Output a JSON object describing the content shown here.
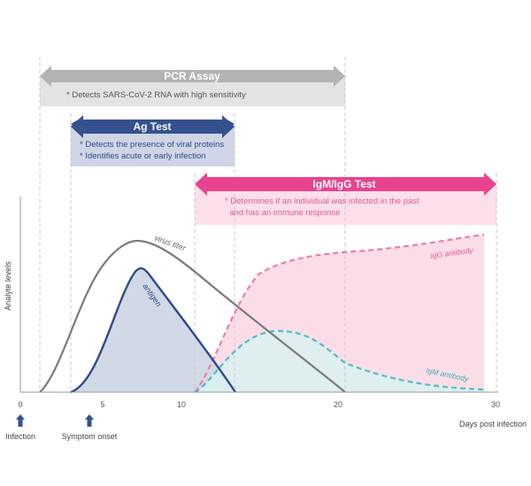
{
  "assays": {
    "pcr": {
      "title": "PCR Assay",
      "notes": [
        "* Detects SARS-CoV-2 RNA with high sensitivity"
      ],
      "color": "#b3b3b3",
      "panel_color": "#e3e3e3"
    },
    "ag": {
      "title": "Ag Test",
      "notes": [
        "* Detects the presence of viral proteins",
        "* Identifies acute or early infection"
      ],
      "color": "#35508f",
      "panel_color": "#cfd5e6"
    },
    "igm_igg": {
      "title": "IgM/IgG Test",
      "notes": [
        "* Determines if an individual was infected in the past",
        "  and has an immune response"
      ],
      "color": "#e8438e",
      "panel_color": "#fcdfeb"
    }
  },
  "axes": {
    "y_label": "Analyte levels",
    "x_label": "Days post infection",
    "ticks": [
      "0",
      "5",
      "10",
      "20",
      "30"
    ]
  },
  "markers": {
    "infection": "Infection",
    "symptom_onset": "Symptom onset"
  },
  "curves": {
    "virus_titer": {
      "label": "virus titer",
      "color": "#7a7a7a"
    },
    "antigen": {
      "label": "antigen",
      "color": "#2d4c8a",
      "fill": "#d2d9e6"
    },
    "igg": {
      "label": "IgG antibody",
      "color": "#f07aa9",
      "fill": "#fbdde8"
    },
    "igm": {
      "label": "IgM antibody",
      "color": "#4dbfc4",
      "fill": "#dcefef"
    }
  }
}
